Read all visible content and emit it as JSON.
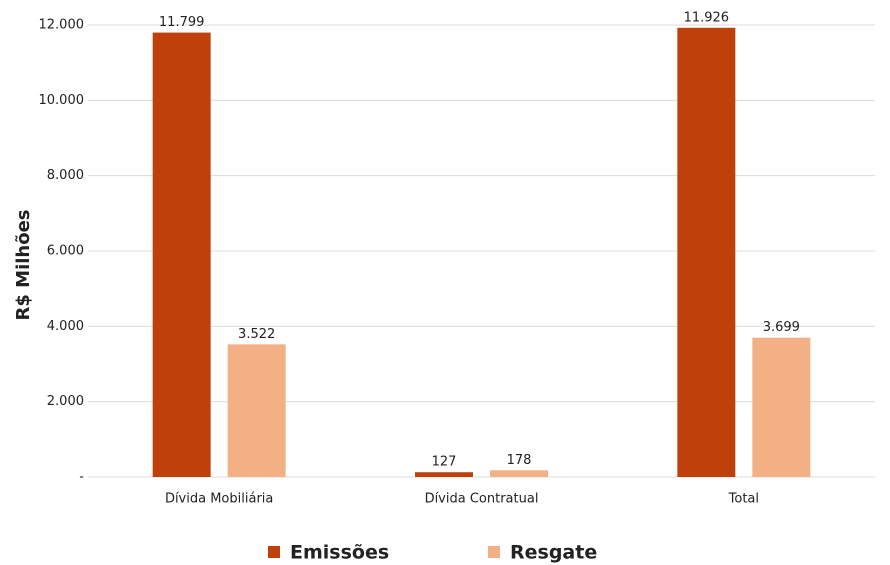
{
  "chart_data": {
    "type": "bar",
    "y_label": "R$ Milhões",
    "categories": [
      "Dívida Mobiliária",
      "Dívida Contratual",
      "Total"
    ],
    "series": [
      {
        "name": "Emissões",
        "color": "#c0400c",
        "values": [
          11799,
          127,
          11926
        ],
        "value_labels": [
          "11.799",
          "127",
          "11.926"
        ]
      },
      {
        "name": "Resgate",
        "color": "#f4b085",
        "values": [
          3522,
          178,
          3699
        ],
        "value_labels": [
          "3.522",
          "178",
          "3.699"
        ]
      }
    ],
    "ylim": [
      0,
      12000
    ],
    "yticks": [
      {
        "value": 0,
        "label": "-"
      },
      {
        "value": 2000,
        "label": "2.000"
      },
      {
        "value": 4000,
        "label": "4.000"
      },
      {
        "value": 6000,
        "label": "6.000"
      },
      {
        "value": 8000,
        "label": "8.000"
      },
      {
        "value": 10000,
        "label": "10.000"
      },
      {
        "value": 12000,
        "label": "12.000"
      }
    ],
    "grid": true,
    "legend": "bottom"
  }
}
